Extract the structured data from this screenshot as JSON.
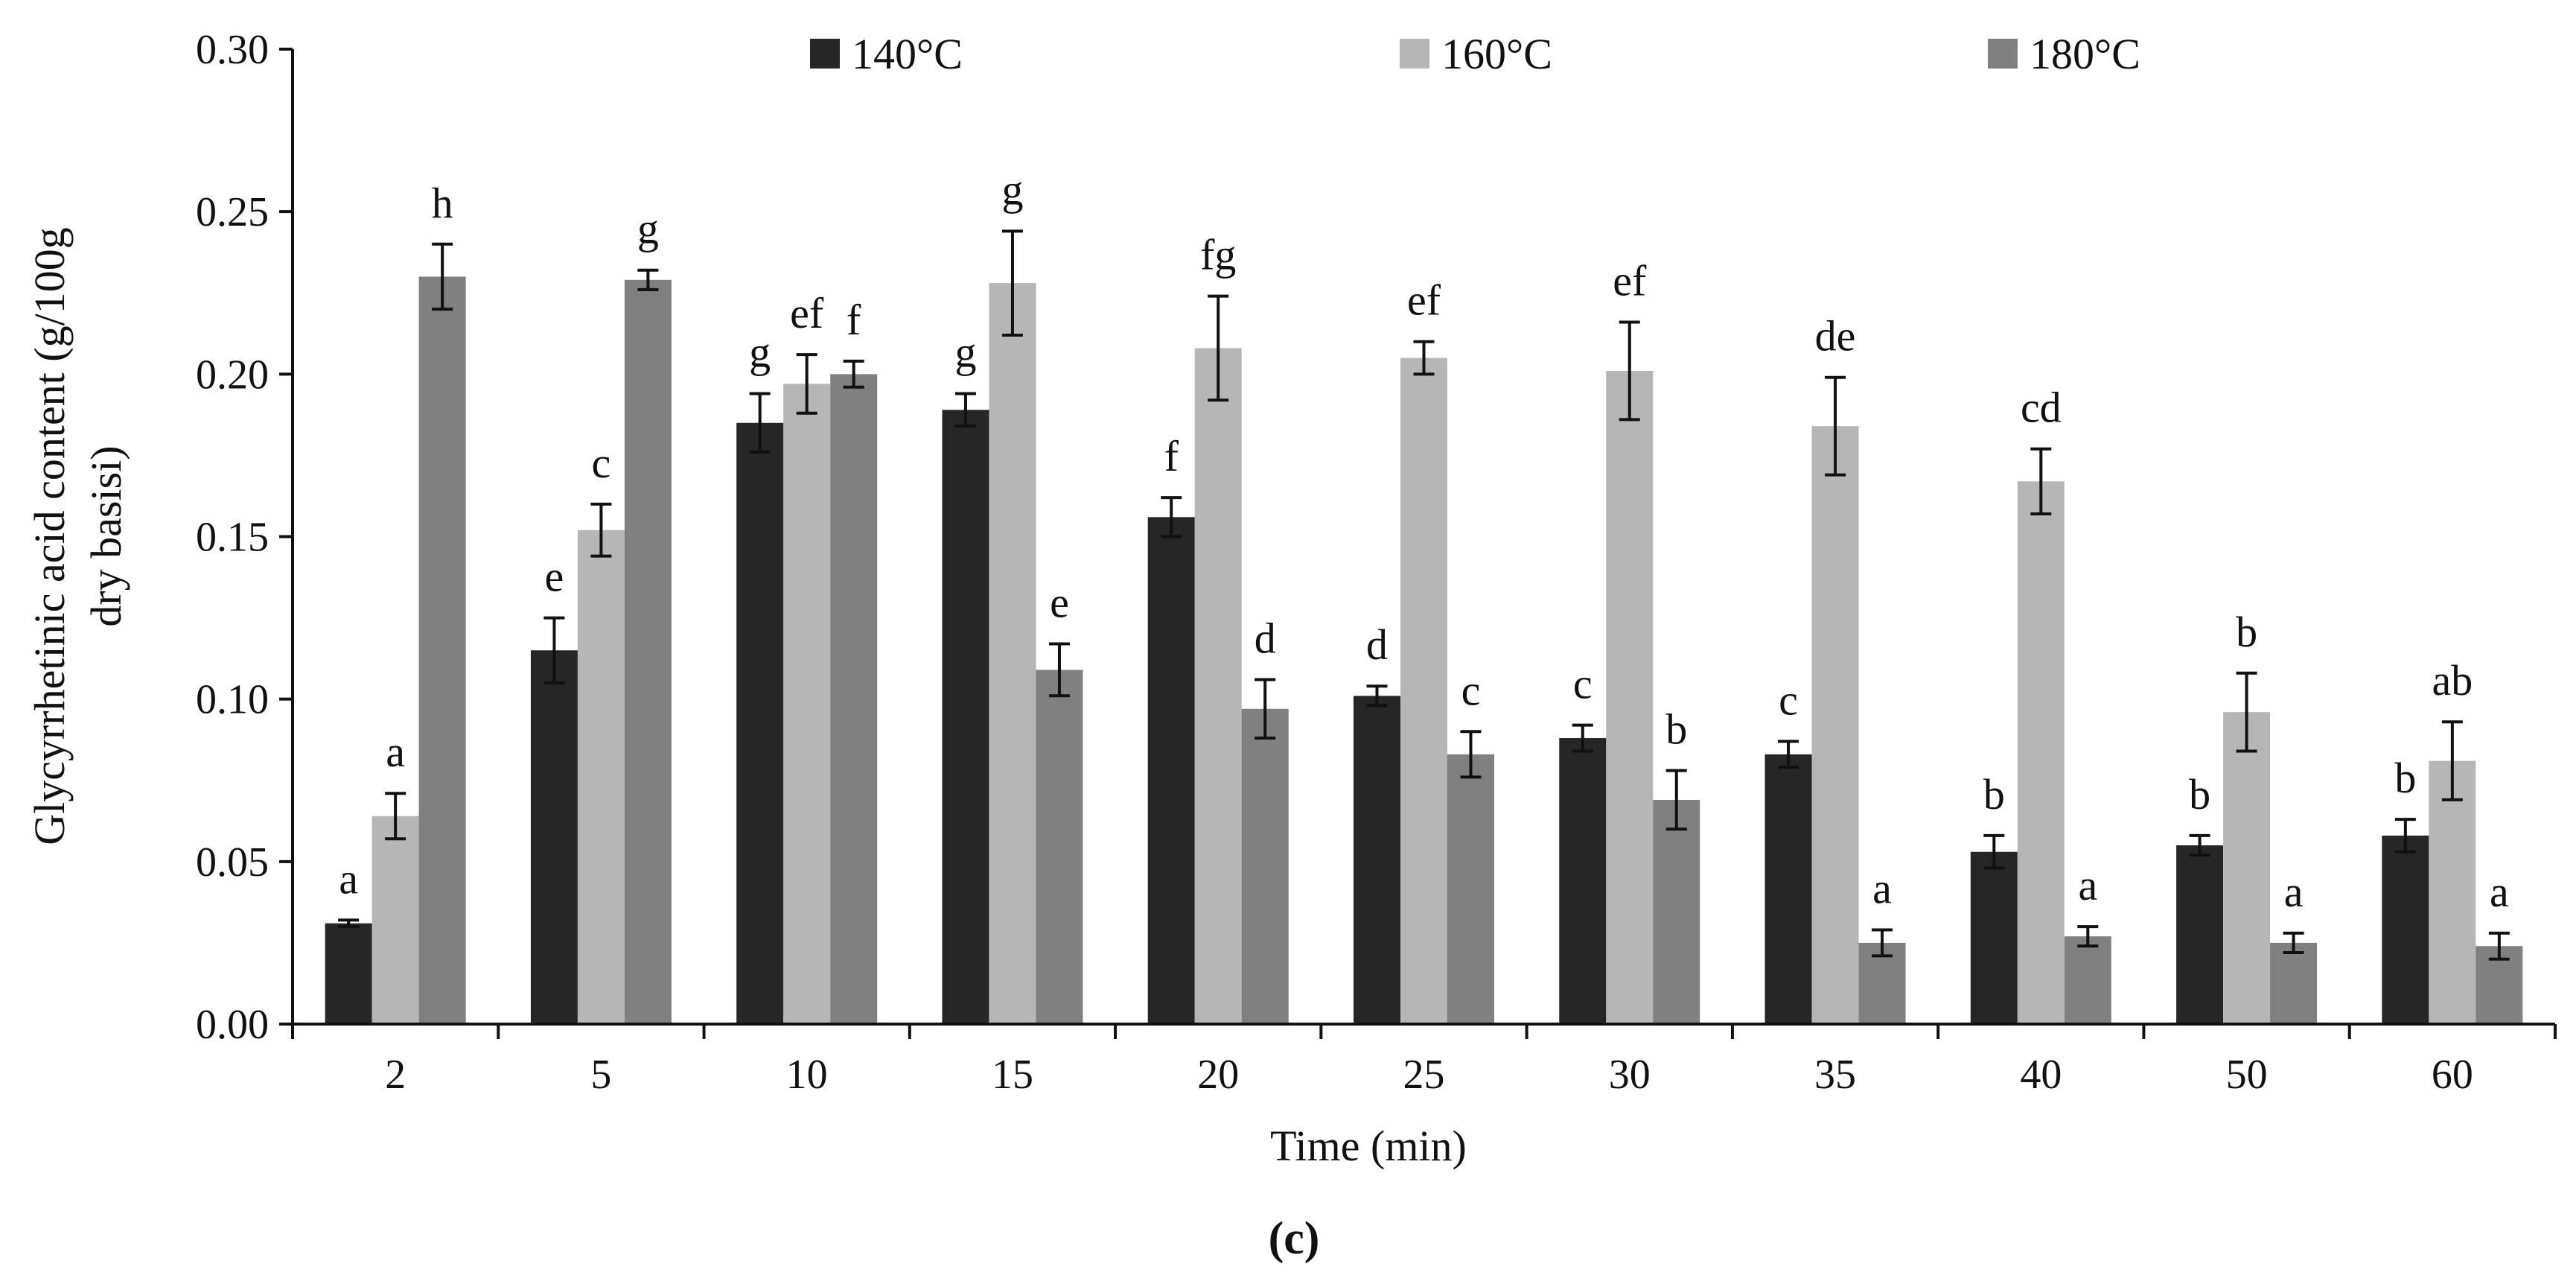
{
  "chart_data": {
    "type": "bar",
    "categories": [
      "2",
      "5",
      "10",
      "15",
      "20",
      "25",
      "30",
      "35",
      "40",
      "50",
      "60"
    ],
    "series": [
      {
        "name": "140°C",
        "color": "#262626",
        "values": [
          0.031,
          0.115,
          0.185,
          0.189,
          0.156,
          0.101,
          0.088,
          0.083,
          0.053,
          0.055,
          0.058
        ],
        "errors": [
          0.001,
          0.01,
          0.009,
          0.005,
          0.006,
          0.003,
          0.004,
          0.004,
          0.005,
          0.003,
          0.005
        ],
        "labels": [
          "a",
          "e",
          "g",
          "g",
          "f",
          "d",
          "c",
          "c",
          "b",
          "b",
          "b"
        ]
      },
      {
        "name": "160°C",
        "color": "#b6b6b6",
        "values": [
          0.064,
          0.152,
          0.197,
          0.228,
          0.208,
          0.205,
          0.201,
          0.184,
          0.167,
          0.096,
          0.081
        ],
        "errors": [
          0.007,
          0.008,
          0.009,
          0.016,
          0.016,
          0.005,
          0.015,
          0.015,
          0.01,
          0.012,
          0.012
        ],
        "labels": [
          "a",
          "c",
          "ef",
          "g",
          "fg",
          "ef",
          "ef",
          "de",
          "cd",
          "b",
          "ab"
        ]
      },
      {
        "name": "180°C",
        "color": "#808080",
        "values": [
          0.23,
          0.229,
          0.2,
          0.109,
          0.097,
          0.083,
          0.069,
          0.025,
          0.027,
          0.025,
          0.024
        ],
        "errors": [
          0.01,
          0.003,
          0.004,
          0.008,
          0.009,
          0.007,
          0.009,
          0.004,
          0.003,
          0.003,
          0.004
        ],
        "labels": [
          "h",
          "g",
          "f",
          "e",
          "d",
          "c",
          "b",
          "a",
          "a",
          "a",
          "a"
        ]
      }
    ],
    "yticks": [
      "0.00",
      "0.05",
      "0.10",
      "0.15",
      "0.20",
      "0.25",
      "0.30"
    ],
    "ylim": [
      0,
      0.3
    ],
    "ylabel_line1": "Glycyrrhetinic acid content  (g/100g",
    "ylabel_line2": "dry basisi)",
    "xlabel": "Time (min)",
    "legend_position": "top",
    "grid": false
  },
  "panel_label": "(c)"
}
